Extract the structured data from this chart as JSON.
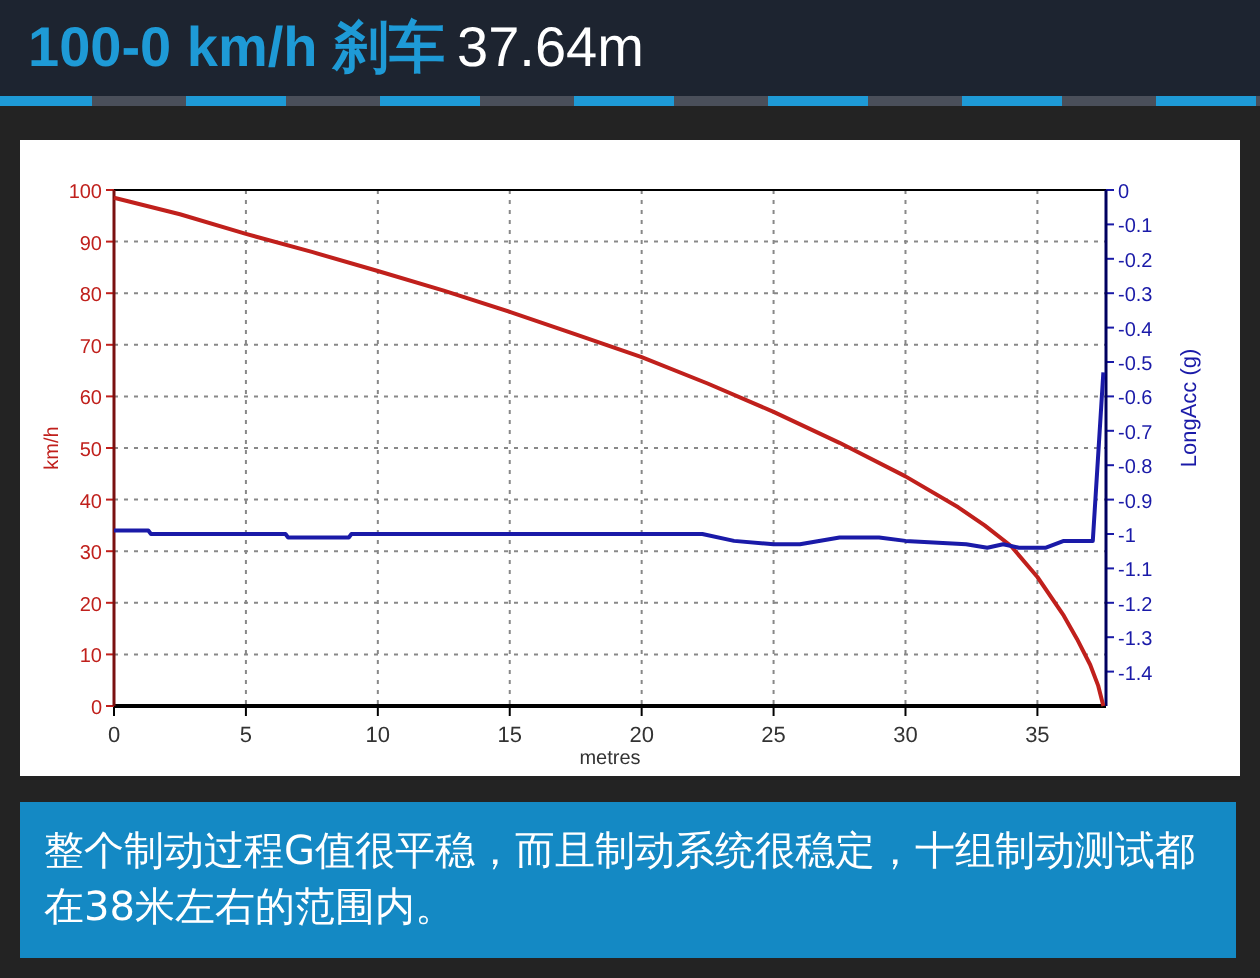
{
  "chart_data": {
    "type": "line",
    "title": "100-0 km/h 刹车",
    "subtitle": "37.64m",
    "xlabel": "metres",
    "ylabel": "km/h",
    "y2label": "LongAcc (g)",
    "annotations": [
      "整个制动过程G值很平稳，而且制动系统很稳定，十组制动测试都在38米左右的范围内。"
    ],
    "xlim": [
      0,
      37.6
    ],
    "xticks": [
      0,
      5,
      10,
      15,
      20,
      25,
      30,
      35
    ],
    "ylim": [
      0,
      100
    ],
    "yticks": [
      0,
      10,
      20,
      30,
      40,
      50,
      60,
      70,
      80,
      90,
      100
    ],
    "y2lim": [
      -1.5,
      0
    ],
    "y2ticks": [
      0,
      -0.1,
      -0.2,
      -0.3,
      -0.4,
      -0.5,
      -0.6,
      -0.7,
      -0.8,
      -0.9,
      -1,
      -1.1,
      -1.2,
      -1.3,
      -1.4
    ],
    "grid": true,
    "marker": "none",
    "line_style": "solid",
    "series": [
      {
        "color": "#c0201c",
        "x": [
          0,
          2.5,
          5,
          7.5,
          10,
          12.5,
          15,
          17.5,
          20,
          22.5,
          25,
          27.5,
          30,
          32,
          33,
          34,
          35,
          36,
          36.5,
          37,
          37.3,
          37.5
        ],
        "values": [
          98.5,
          95.3,
          91.5,
          88,
          84.3,
          80.5,
          76.4,
          72,
          67.6,
          62.5,
          57,
          51,
          44.5,
          38.5,
          35,
          31,
          25,
          17.5,
          13,
          8,
          4,
          0
        ]
      },
      {
        "color": "#1a1aa8",
        "axis": "y2",
        "x": [
          0,
          1.3,
          1.4,
          5.2,
          5.4,
          6.5,
          6.6,
          8.9,
          9,
          12.5,
          12.6,
          22.3,
          23.5,
          25,
          26,
          27.5,
          29,
          30,
          32.3,
          33.1,
          33.7,
          34.3,
          35.3,
          36,
          37.1,
          37.5
        ],
        "values": [
          -0.99,
          -0.99,
          -1.0,
          -1.0,
          -1.0,
          -1.0,
          -1.01,
          -1.01,
          -1.0,
          -1.0,
          -1.0,
          -1.0,
          -1.02,
          -1.03,
          -1.03,
          -1.01,
          -1.01,
          -1.02,
          -1.03,
          -1.04,
          -1.03,
          -1.04,
          -1.04,
          -1.02,
          -1.02,
          -0.53
        ]
      }
    ]
  }
}
